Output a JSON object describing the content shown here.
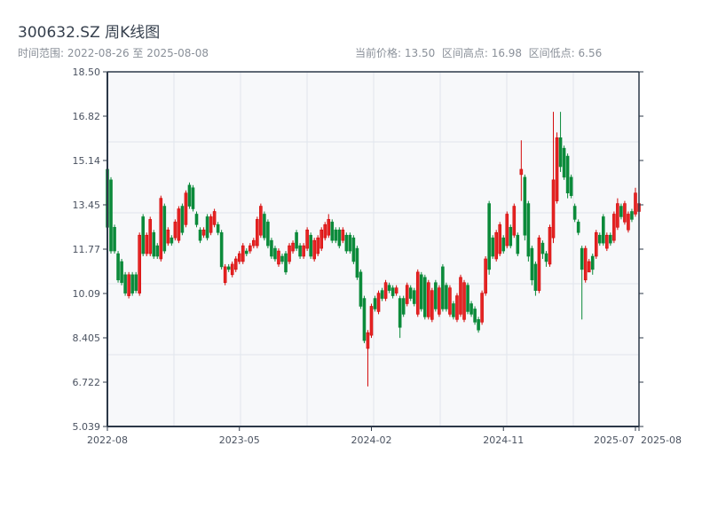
{
  "header": {
    "title": "300632.SZ 周K线图",
    "range_text": "时间范围: 2022-08-26 至 2025-08-08",
    "stats_text": "当前价格: 13.50  区间高点: 16.98  区间低点: 6.56"
  },
  "colors": {
    "up": "#d40a0a",
    "down": "#0b8a3a",
    "axis": "#2c3848",
    "grid": "#e1e5ec",
    "plot_bg": "#f7f8fa"
  },
  "chart_data": {
    "type": "candlestick",
    "title": "300632.SZ 周K线图",
    "ylim": [
      5.039,
      18.5
    ],
    "yticks": [
      "18.50",
      "16.82",
      "15.14",
      "13.45",
      "11.77",
      "10.09",
      "8.405",
      "6.722",
      "5.039"
    ],
    "xticks": [
      {
        "label": "2022-08",
        "index": 0
      },
      {
        "label": "2023-05",
        "index": 37
      },
      {
        "label": "2024-02",
        "index": 74
      },
      {
        "label": "2024-11",
        "index": 111
      },
      {
        "label": "2025-07",
        "index": 148
      },
      {
        "label": "2025-08",
        "index": 149
      }
    ],
    "ohlc_format": [
      "open",
      "high",
      "low",
      "close"
    ],
    "ohlc": [
      [
        14.8,
        14.9,
        12.5,
        12.6
      ],
      [
        14.4,
        14.5,
        11.6,
        11.7
      ],
      [
        12.6,
        12.7,
        11.6,
        11.7
      ],
      [
        11.6,
        11.7,
        10.5,
        10.6
      ],
      [
        11.3,
        11.4,
        10.4,
        10.5
      ],
      [
        10.8,
        10.9,
        10.0,
        10.1
      ],
      [
        10.0,
        10.9,
        9.9,
        10.8
      ],
      [
        10.8,
        10.9,
        10.0,
        10.1
      ],
      [
        10.8,
        10.9,
        10.1,
        10.2
      ],
      [
        10.1,
        12.4,
        10.0,
        12.3
      ],
      [
        13.0,
        13.1,
        11.5,
        11.6
      ],
      [
        11.6,
        12.4,
        11.5,
        12.3
      ],
      [
        11.6,
        13.0,
        11.5,
        12.9
      ],
      [
        12.4,
        12.5,
        11.4,
        11.5
      ],
      [
        11.9,
        12.0,
        11.4,
        11.5
      ],
      [
        11.4,
        13.8,
        11.3,
        13.7
      ],
      [
        13.4,
        13.5,
        11.6,
        11.7
      ],
      [
        12.0,
        12.6,
        11.9,
        12.5
      ],
      [
        12.2,
        12.3,
        11.9,
        12.0
      ],
      [
        12.2,
        12.9,
        12.1,
        12.8
      ],
      [
        12.1,
        13.4,
        12.0,
        13.3
      ],
      [
        13.4,
        13.5,
        12.3,
        12.4
      ],
      [
        12.7,
        14.0,
        12.6,
        13.9
      ],
      [
        14.2,
        14.3,
        13.3,
        13.4
      ],
      [
        14.1,
        14.2,
        13.2,
        13.3
      ],
      [
        13.1,
        13.2,
        12.6,
        12.7
      ],
      [
        12.5,
        12.6,
        12.0,
        12.1
      ],
      [
        12.3,
        12.6,
        12.2,
        12.5
      ],
      [
        13.0,
        13.1,
        12.1,
        12.2
      ],
      [
        12.4,
        13.1,
        12.3,
        13.0
      ],
      [
        12.7,
        13.3,
        12.6,
        13.2
      ],
      [
        12.7,
        12.8,
        12.3,
        12.4
      ],
      [
        12.4,
        12.5,
        11.0,
        11.1
      ],
      [
        10.5,
        11.2,
        10.4,
        11.1
      ],
      [
        11.1,
        11.2,
        10.9,
        11.0
      ],
      [
        10.8,
        11.3,
        10.7,
        11.2
      ],
      [
        11.0,
        11.5,
        10.9,
        11.4
      ],
      [
        11.3,
        11.7,
        11.2,
        11.6
      ],
      [
        11.3,
        12.0,
        11.2,
        11.9
      ],
      [
        11.7,
        11.8,
        11.5,
        11.6
      ],
      [
        11.7,
        12.0,
        11.6,
        11.9
      ],
      [
        11.9,
        12.2,
        11.8,
        12.1
      ],
      [
        11.9,
        13.0,
        11.8,
        12.9
      ],
      [
        12.3,
        13.5,
        12.2,
        13.4
      ],
      [
        13.1,
        13.2,
        12.1,
        12.2
      ],
      [
        12.8,
        12.9,
        11.8,
        11.9
      ],
      [
        12.1,
        12.2,
        11.4,
        11.5
      ],
      [
        11.8,
        11.9,
        11.3,
        11.4
      ],
      [
        11.2,
        11.8,
        11.1,
        11.7
      ],
      [
        11.5,
        11.6,
        11.2,
        11.3
      ],
      [
        11.6,
        11.7,
        10.8,
        10.9
      ],
      [
        11.3,
        12.0,
        11.2,
        11.9
      ],
      [
        11.7,
        12.1,
        11.6,
        12.0
      ],
      [
        12.4,
        12.5,
        11.7,
        11.8
      ],
      [
        11.9,
        12.0,
        11.4,
        11.5
      ],
      [
        11.5,
        12.0,
        11.4,
        11.9
      ],
      [
        11.8,
        12.6,
        11.7,
        12.5
      ],
      [
        12.3,
        12.4,
        11.4,
        11.5
      ],
      [
        11.4,
        12.2,
        11.3,
        12.1
      ],
      [
        11.6,
        12.3,
        11.5,
        12.2
      ],
      [
        11.8,
        12.6,
        11.7,
        12.5
      ],
      [
        12.2,
        12.8,
        12.1,
        12.7
      ],
      [
        12.3,
        13.1,
        12.2,
        12.9
      ],
      [
        12.8,
        12.9,
        12.0,
        12.1
      ],
      [
        12.5,
        12.6,
        12.0,
        12.1
      ],
      [
        12.5,
        12.6,
        11.8,
        11.9
      ],
      [
        12.1,
        12.6,
        12.0,
        12.5
      ],
      [
        12.3,
        12.4,
        11.6,
        11.7
      ],
      [
        12.3,
        12.4,
        11.6,
        11.7
      ],
      [
        12.2,
        12.3,
        11.2,
        11.3
      ],
      [
        11.8,
        11.9,
        10.6,
        10.7
      ],
      [
        10.9,
        11.0,
        9.5,
        9.6
      ],
      [
        9.9,
        10.0,
        8.2,
        8.3
      ],
      [
        8.0,
        8.7,
        6.56,
        8.6
      ],
      [
        8.5,
        9.7,
        8.4,
        9.6
      ],
      [
        9.9,
        10.0,
        9.4,
        9.5
      ],
      [
        9.4,
        10.2,
        9.3,
        10.1
      ],
      [
        10.2,
        10.3,
        9.8,
        9.9
      ],
      [
        9.9,
        10.6,
        9.8,
        10.5
      ],
      [
        10.4,
        10.5,
        10.1,
        10.2
      ],
      [
        10.3,
        10.4,
        9.9,
        10.0
      ],
      [
        10.1,
        10.4,
        10.0,
        10.3
      ],
      [
        9.9,
        10.0,
        8.4,
        8.8
      ],
      [
        9.9,
        10.0,
        9.2,
        9.3
      ],
      [
        9.7,
        10.5,
        9.6,
        10.4
      ],
      [
        10.3,
        10.4,
        9.8,
        9.9
      ],
      [
        10.2,
        10.3,
        9.6,
        9.7
      ],
      [
        9.3,
        11.0,
        9.2,
        10.9
      ],
      [
        10.8,
        10.9,
        9.4,
        9.5
      ],
      [
        10.7,
        10.8,
        9.1,
        9.2
      ],
      [
        9.2,
        10.6,
        9.1,
        10.5
      ],
      [
        9.1,
        10.3,
        9.0,
        10.2
      ],
      [
        10.5,
        10.6,
        9.4,
        9.5
      ],
      [
        9.3,
        10.4,
        9.2,
        10.3
      ],
      [
        11.1,
        11.2,
        9.4,
        9.5
      ],
      [
        10.4,
        10.5,
        9.4,
        9.5
      ],
      [
        9.3,
        10.4,
        9.2,
        10.3
      ],
      [
        9.7,
        9.8,
        9.1,
        9.2
      ],
      [
        9.1,
        10.1,
        9.0,
        10.0
      ],
      [
        9.3,
        10.8,
        9.2,
        10.7
      ],
      [
        9.1,
        10.6,
        9.0,
        10.5
      ],
      [
        10.4,
        10.5,
        9.3,
        9.4
      ],
      [
        9.7,
        9.8,
        9.2,
        9.3
      ],
      [
        9.5,
        9.6,
        8.9,
        9.0
      ],
      [
        9.1,
        9.2,
        8.6,
        8.7
      ],
      [
        9.0,
        10.2,
        8.9,
        10.1
      ],
      [
        10.1,
        11.5,
        10.0,
        11.4
      ],
      [
        13.5,
        13.6,
        10.8,
        11.0
      ],
      [
        12.2,
        12.3,
        11.4,
        11.5
      ],
      [
        11.4,
        12.5,
        11.3,
        12.4
      ],
      [
        11.6,
        12.8,
        11.5,
        12.7
      ],
      [
        12.2,
        12.3,
        11.6,
        11.7
      ],
      [
        11.9,
        13.2,
        11.8,
        13.1
      ],
      [
        12.6,
        12.7,
        11.8,
        11.9
      ],
      [
        12.3,
        13.5,
        12.2,
        13.4
      ],
      [
        12.3,
        12.4,
        11.5,
        11.6
      ],
      [
        14.6,
        15.9,
        13.6,
        14.8
      ],
      [
        14.5,
        14.6,
        12.1,
        12.3
      ],
      [
        13.5,
        13.6,
        11.3,
        11.5
      ],
      [
        11.8,
        11.9,
        10.4,
        10.6
      ],
      [
        11.2,
        11.3,
        10.0,
        10.2
      ],
      [
        10.2,
        12.3,
        10.1,
        12.2
      ],
      [
        12.0,
        12.1,
        11.4,
        11.6
      ],
      [
        11.6,
        11.7,
        11.1,
        11.3
      ],
      [
        11.2,
        12.7,
        11.1,
        12.6
      ],
      [
        12.2,
        16.98,
        12.0,
        14.4
      ],
      [
        13.6,
        16.2,
        13.5,
        16.0
      ],
      [
        16.0,
        16.98,
        14.7,
        14.9
      ],
      [
        15.6,
        15.7,
        14.4,
        14.5
      ],
      [
        15.3,
        15.4,
        13.7,
        13.9
      ],
      [
        14.5,
        14.6,
        13.7,
        13.8
      ],
      [
        13.4,
        13.5,
        12.8,
        12.9
      ],
      [
        12.8,
        12.9,
        12.3,
        12.4
      ],
      [
        11.8,
        11.9,
        9.1,
        11.0
      ],
      [
        10.6,
        11.9,
        10.5,
        11.8
      ],
      [
        10.9,
        11.4,
        10.9,
        11.3
      ],
      [
        11.5,
        11.6,
        10.8,
        11.0
      ],
      [
        11.5,
        12.5,
        11.4,
        12.4
      ],
      [
        12.3,
        12.4,
        11.9,
        12.0
      ],
      [
        13.0,
        13.1,
        11.9,
        12.0
      ],
      [
        11.8,
        12.4,
        11.7,
        12.3
      ],
      [
        12.3,
        12.4,
        11.9,
        12.0
      ],
      [
        12.1,
        13.2,
        12.0,
        13.1
      ],
      [
        12.6,
        13.7,
        12.5,
        13.5
      ],
      [
        13.4,
        13.5,
        12.9,
        13.0
      ],
      [
        12.8,
        13.6,
        12.7,
        13.5
      ],
      [
        12.5,
        13.2,
        12.4,
        13.1
      ],
      [
        13.2,
        13.3,
        12.8,
        12.9
      ],
      [
        13.1,
        14.1,
        13.0,
        13.9
      ],
      [
        13.2,
        13.8,
        13.1,
        13.5
      ]
    ]
  }
}
